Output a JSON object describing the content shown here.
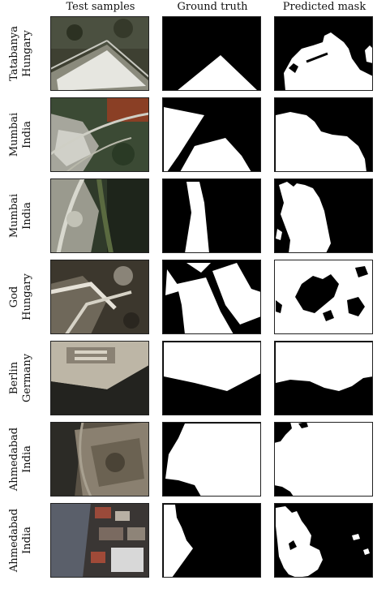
{
  "headers": {
    "samples": "Test samples",
    "truth": "Ground truth",
    "predicted": "Predicted mask"
  },
  "rows": [
    {
      "line1": "Tatabanya",
      "line2": "Hungary"
    },
    {
      "line1": "Mumbai",
      "line2": "India"
    },
    {
      "line1": "Mumbai",
      "line2": "India"
    },
    {
      "line1": "God",
      "line2": "Hungary"
    },
    {
      "line1": "Berlin",
      "line2": "Germany"
    },
    {
      "line1": "Ahmedabad",
      "line2": "India"
    },
    {
      "line1": "Ahmedabad",
      "line2": "India"
    }
  ]
}
